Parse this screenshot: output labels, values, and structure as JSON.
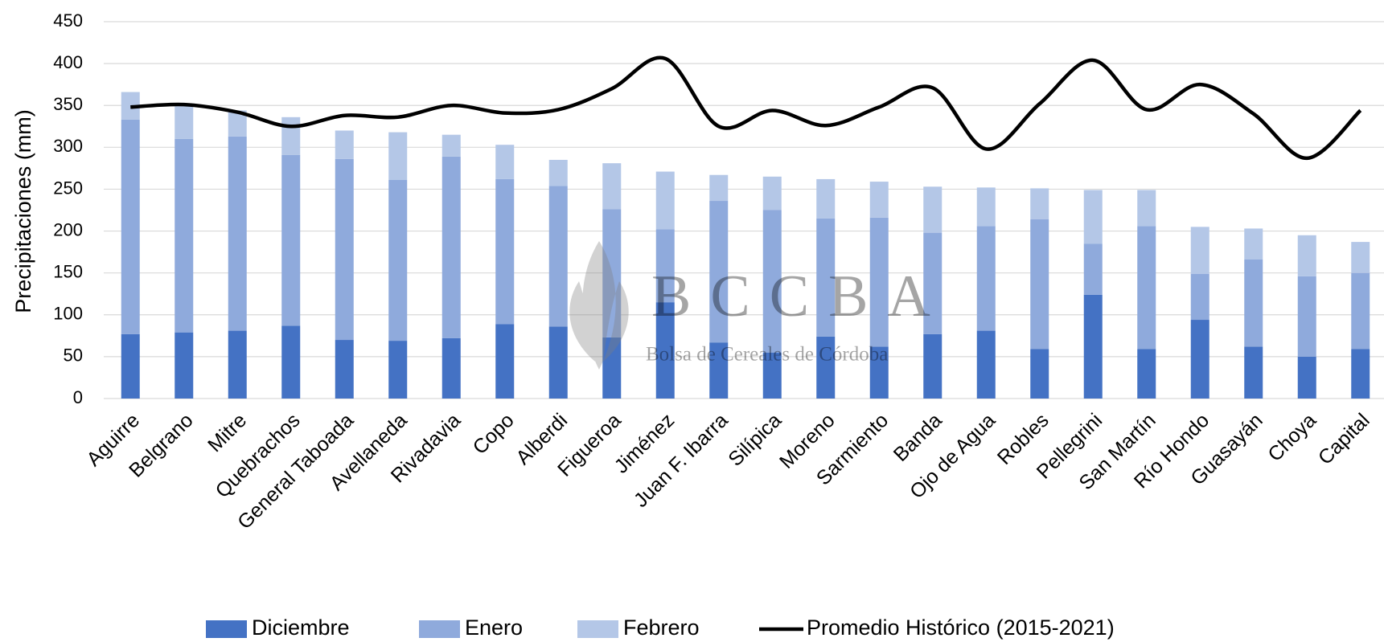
{
  "chart_data": {
    "type": "bar",
    "stacked": true,
    "y_label": "Precipitaciones (mm)",
    "categories": [
      "Aguirre",
      "Belgrano",
      "Mitre",
      "Quebrachos",
      "General Taboada",
      "Avellaneda",
      "Rivadavia",
      "Copo",
      "Alberdi",
      "Figueroa",
      "Jiménez",
      "Juan F. Ibarra",
      "Silípica",
      "Moreno",
      "Sarmiento",
      "Banda",
      "Ojo de Agua",
      "Robles",
      "Pellegrini",
      "San Martín",
      "Río Hondo",
      "Guasayán",
      "Choya",
      "Capital"
    ],
    "series": [
      {
        "name": "Diciembre",
        "type": "bar",
        "color": "#4472c4",
        "values": [
          77,
          79,
          81,
          87,
          70,
          69,
          72,
          89,
          86,
          73,
          115,
          67,
          55,
          74,
          62,
          77,
          81,
          59,
          124,
          59,
          94,
          62,
          50,
          59
        ]
      },
      {
        "name": "Enero",
        "type": "bar",
        "color": "#8faadc",
        "values": [
          256,
          231,
          232,
          204,
          216,
          192,
          217,
          173,
          168,
          153,
          87,
          169,
          170,
          141,
          154,
          121,
          125,
          155,
          61,
          147,
          55,
          104,
          96,
          91
        ]
      },
      {
        "name": "Febrero",
        "type": "bar",
        "color": "#b4c7e7",
        "values": [
          33,
          39,
          31,
          45,
          34,
          57,
          26,
          41,
          31,
          55,
          69,
          31,
          40,
          47,
          43,
          55,
          46,
          37,
          64,
          43,
          56,
          37,
          49,
          37
        ]
      },
      {
        "name": "Promedio Histórico (2015-2021)",
        "type": "line",
        "color": "#000000",
        "values": [
          348,
          351,
          342,
          325,
          338,
          336,
          350,
          341,
          345,
          370,
          406,
          325,
          344,
          326,
          348,
          371,
          298,
          352,
          404,
          345,
          375,
          340,
          287,
          344
        ]
      }
    ],
    "ylim": [
      0,
      450
    ],
    "yticks": [
      0,
      50,
      100,
      150,
      200,
      250,
      300,
      350,
      400,
      450
    ],
    "grid": true,
    "legend": "bottom",
    "watermark": {
      "logo": "BCCBA",
      "text": "Bolsa de Cereales de Córdoba"
    }
  }
}
